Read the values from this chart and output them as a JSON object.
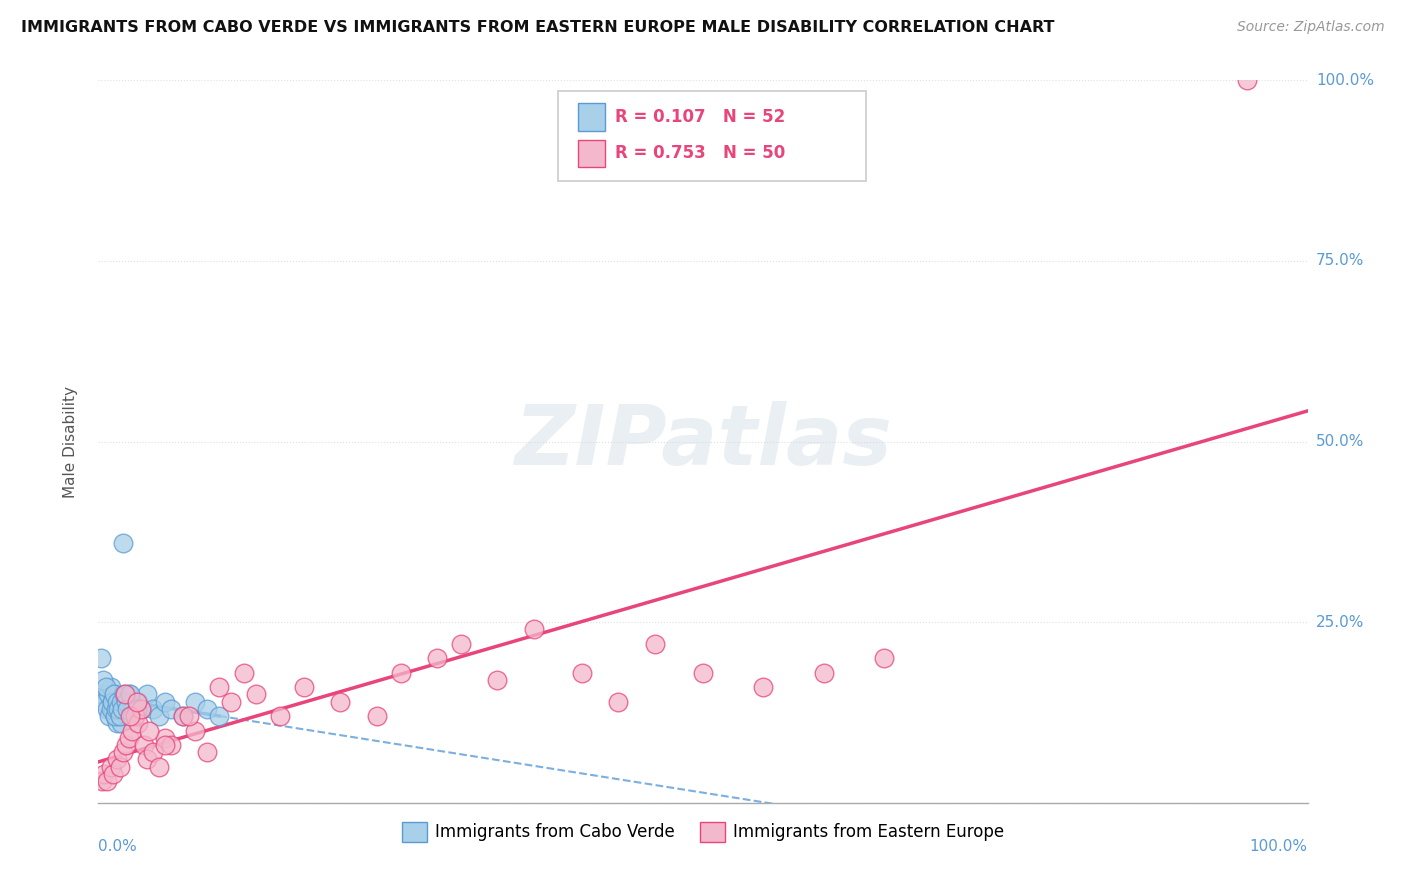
{
  "title": "IMMIGRANTS FROM CABO VERDE VS IMMIGRANTS FROM EASTERN EUROPE MALE DISABILITY CORRELATION CHART",
  "source": "Source: ZipAtlas.com",
  "ylabel": "Male Disability",
  "r1": 0.107,
  "n1": 52,
  "r2": 0.753,
  "n2": 50,
  "color1": "#a8d0e8",
  "color2": "#f4b8cc",
  "line_color1": "#5b9bd5",
  "line_color2": "#e8457a",
  "watermark": "ZIPatlas",
  "legend_label1": "Immigrants from Cabo Verde",
  "legend_label2": "Immigrants from Eastern Europe",
  "ytick_vals": [
    0,
    25,
    50,
    75,
    100
  ],
  "cabo_verde_x": [
    0.3,
    0.5,
    0.7,
    0.8,
    0.9,
    1.0,
    1.1,
    1.2,
    1.3,
    1.4,
    1.5,
    1.6,
    1.7,
    1.8,
    1.9,
    2.0,
    2.1,
    2.2,
    2.3,
    2.5,
    2.7,
    3.0,
    3.3,
    3.6,
    4.0,
    4.5,
    5.0,
    5.5,
    6.0,
    7.0,
    8.0,
    9.0,
    10.0,
    0.2,
    0.4,
    0.6,
    1.05,
    1.15,
    1.25,
    1.35,
    1.45,
    1.55,
    1.65,
    1.75,
    1.85,
    1.95,
    2.15,
    2.25,
    2.4,
    2.6,
    2.8,
    3.2
  ],
  "cabo_verde_y": [
    15,
    14,
    13,
    15,
    12,
    16,
    14,
    13,
    15,
    12,
    11,
    14,
    13,
    12,
    11,
    36,
    14,
    13,
    12,
    15,
    13,
    12,
    14,
    13,
    15,
    13,
    12,
    14,
    13,
    12,
    14,
    13,
    12,
    20,
    17,
    16,
    13,
    14,
    15,
    12,
    13,
    14,
    13,
    12,
    14,
    13,
    15,
    14,
    13,
    15,
    12,
    13
  ],
  "eastern_europe_x": [
    0.3,
    0.5,
    0.7,
    1.0,
    1.2,
    1.5,
    1.8,
    2.0,
    2.3,
    2.5,
    2.8,
    3.0,
    3.3,
    3.5,
    3.8,
    4.0,
    4.5,
    5.0,
    5.5,
    6.0,
    7.0,
    8.0,
    9.0,
    10.0,
    11.0,
    12.0,
    13.0,
    15.0,
    17.0,
    20.0,
    23.0,
    25.0,
    28.0,
    30.0,
    33.0,
    36.0,
    40.0,
    43.0,
    46.0,
    50.0,
    55.0,
    60.0,
    65.0,
    95.0,
    2.2,
    2.6,
    3.2,
    4.2,
    5.5,
    7.5
  ],
  "eastern_europe_y": [
    3,
    4,
    3,
    5,
    4,
    6,
    5,
    7,
    8,
    9,
    10,
    12,
    11,
    13,
    8,
    6,
    7,
    5,
    9,
    8,
    12,
    10,
    7,
    16,
    14,
    18,
    15,
    12,
    16,
    14,
    12,
    18,
    20,
    22,
    17,
    24,
    18,
    14,
    22,
    18,
    16,
    18,
    20,
    100,
    15,
    12,
    14,
    10,
    8,
    12
  ]
}
